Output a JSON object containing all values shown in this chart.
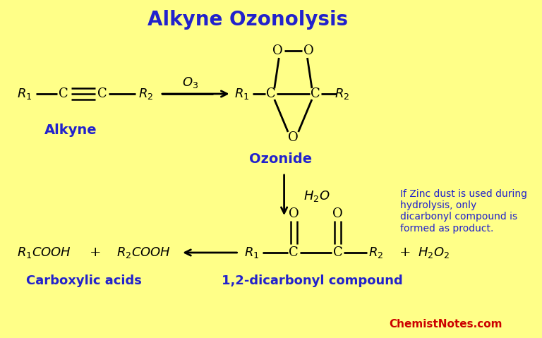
{
  "title": "Alkyne Ozonolysis",
  "title_color": "#2222CC",
  "title_fontsize": 20,
  "bg_color": "#FFFF88",
  "black": "#000000",
  "blue": "#2222CC",
  "red": "#CC0000",
  "note_text": "If Zinc dust is used during\nhydrolysis, only\ndicarbonyl compound is\nformed as product.",
  "chemist_notes": "ChemistNotes.com",
  "alkyne_label": "Alkyne",
  "ozonide_label": "Ozonide",
  "carboxylic_label": "Carboxylic acids",
  "dicarbonyl_label": "1,2-dicarbonyl compound"
}
